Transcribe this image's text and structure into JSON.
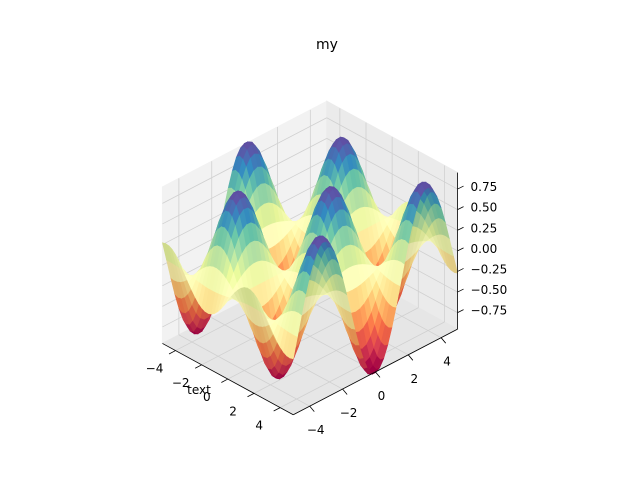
{
  "chart_data": {
    "type": "surface3d",
    "title": "my",
    "xlabel": "text",
    "ylabel": "",
    "zlabel": "",
    "function": "sin(x) * cos(y)",
    "x_range": [
      -5,
      5
    ],
    "y_range": [
      -5,
      5
    ],
    "z_range": [
      -0.95,
      0.95
    ],
    "x_ticks": [
      -4,
      -2,
      0,
      2,
      4
    ],
    "y_ticks": [
      -4,
      -2,
      0,
      2,
      4
    ],
    "z_ticks": [
      -0.75,
      -0.5,
      -0.25,
      0.0,
      0.25,
      0.5,
      0.75
    ],
    "x_tick_labels": [
      "−4",
      "−2",
      "0",
      "2",
      "4"
    ],
    "y_tick_labels": [
      "−4",
      "−2",
      "0",
      "2",
      "4"
    ],
    "z_tick_labels": [
      "−0.75",
      "−0.50",
      "−0.25",
      "0.00",
      "0.25",
      "0.50",
      "0.75"
    ],
    "colormap": "Spectral",
    "colormap_stops": [
      "#9e0142",
      "#d53e4f",
      "#f46d43",
      "#fdae61",
      "#fee08b",
      "#ffffbf",
      "#e6f598",
      "#abdda4",
      "#66c2a5",
      "#3288bd",
      "#5e4fa2"
    ],
    "grid": true,
    "pane_color": "#f2f2f2",
    "grid_color": "#d0d0d0"
  }
}
